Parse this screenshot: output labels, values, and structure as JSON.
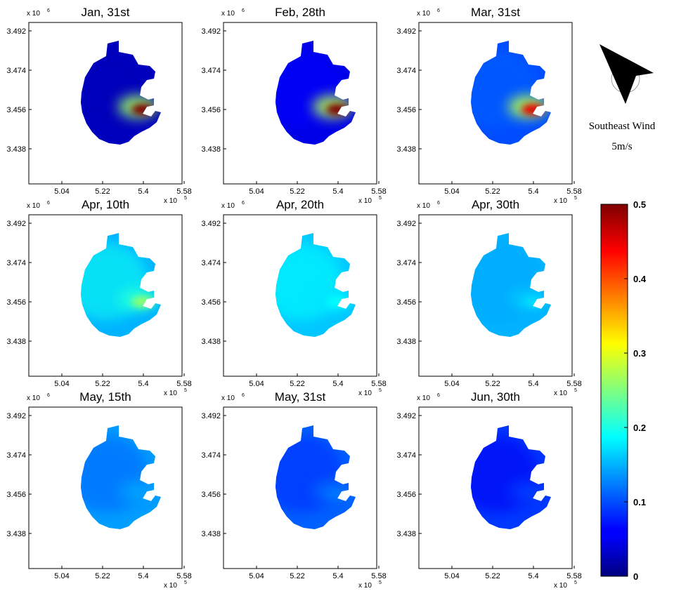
{
  "chart_data": {
    "type": "heatmap",
    "shared": {
      "x_ticks": [
        5.04,
        5.22,
        5.4,
        5.58
      ],
      "y_ticks": [
        3.492,
        3.474,
        3.456,
        3.438
      ],
      "x_exponent": "x 10",
      "x_exponent_power": "5",
      "y_exponent": "x 10",
      "y_exponent_power": "6"
    },
    "panels": [
      {
        "title": "Jan, 31st",
        "hotspot_level": 0.5,
        "background_level": 0.03,
        "spread_level": 0.02
      },
      {
        "title": "Feb, 28th",
        "hotspot_level": 0.5,
        "background_level": 0.05,
        "spread_level": 0.05
      },
      {
        "title": "Mar, 31st",
        "hotspot_level": 0.45,
        "background_level": 0.1,
        "spread_level": 0.08
      },
      {
        "title": "Apr, 10th",
        "hotspot_level": 0.26,
        "background_level": 0.15,
        "spread_level": 0.15
      },
      {
        "title": "Apr, 20th",
        "hotspot_level": 0.19,
        "background_level": 0.16,
        "spread_level": 0.14
      },
      {
        "title": "Apr, 30th",
        "hotspot_level": 0.17,
        "background_level": 0.15,
        "spread_level": 0.1
      },
      {
        "title": "May, 15th",
        "hotspot_level": 0.14,
        "background_level": 0.14,
        "spread_level": 0.07
      },
      {
        "title": "May, 31st",
        "hotspot_level": 0.12,
        "background_level": 0.11,
        "spread_level": 0.05
      },
      {
        "title": "Jun, 30th",
        "hotspot_level": 0.09,
        "background_level": 0.09,
        "spread_level": 0.03
      }
    ],
    "colorbar": {
      "range": [
        0,
        0.5
      ],
      "ticks": [
        "0",
        "0.1",
        "0.2",
        "0.3",
        "0.4",
        "0.5"
      ],
      "colormap": "jet"
    },
    "annotation": {
      "wind_label": "Southeast Wind",
      "wind_speed": "5m/s",
      "arrow_icon": "northwest-pointing-arrow-icon"
    }
  }
}
